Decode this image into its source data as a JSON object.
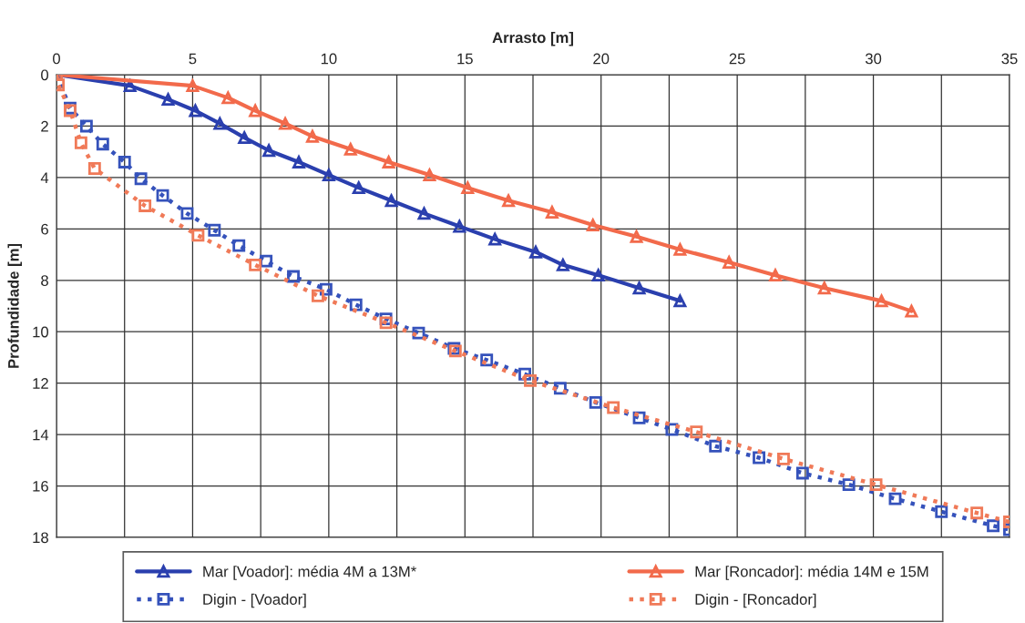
{
  "chart_data": {
    "type": "line",
    "xlabel": "Arrasto [m]",
    "ylabel": "Profundidade [m]",
    "xlim": [
      0,
      35
    ],
    "xticks": [
      0,
      5,
      10,
      15,
      20,
      25,
      30,
      35
    ],
    "ylim": [
      18,
      0
    ],
    "yticks": [
      0,
      2,
      4,
      6,
      8,
      10,
      12,
      14,
      16,
      18
    ],
    "grid": true,
    "legend": "bottom",
    "series": [
      {
        "name": "Mar [Voador]: média 4M a 13M*",
        "color": "#2a3fae",
        "marker": "triangle",
        "line_style": "solid",
        "x": [
          0,
          2.7,
          4.1,
          5.1,
          6.0,
          6.9,
          7.8,
          8.9,
          10.0,
          11.1,
          12.3,
          13.5,
          14.8,
          16.1,
          17.6,
          18.6,
          19.9,
          21.4,
          22.9
        ],
        "values": [
          0,
          0.43,
          0.96,
          1.4,
          1.9,
          2.45,
          2.95,
          3.4,
          3.9,
          4.4,
          4.9,
          5.4,
          5.9,
          6.4,
          6.9,
          7.4,
          7.8,
          8.3,
          8.8
        ]
      },
      {
        "name": "Mar [Roncador]: média 14M e 15M",
        "color": "#f26a4b",
        "marker": "triangle",
        "line_style": "solid",
        "x": [
          0,
          5.0,
          6.3,
          7.3,
          8.4,
          9.4,
          10.8,
          12.2,
          13.7,
          15.1,
          16.6,
          18.2,
          19.7,
          21.3,
          22.9,
          24.7,
          26.4,
          28.2,
          30.3,
          31.4
        ],
        "values": [
          0,
          0.43,
          0.9,
          1.4,
          1.9,
          2.4,
          2.9,
          3.4,
          3.9,
          4.4,
          4.9,
          5.35,
          5.85,
          6.3,
          6.8,
          7.3,
          7.8,
          8.3,
          8.8,
          9.2
        ]
      },
      {
        "name": "Digin - [Voador]",
        "color": "#3552bb",
        "marker": "square",
        "line_style": "dotted",
        "x": [
          0,
          0.5,
          1.1,
          1.7,
          2.5,
          3.1,
          3.9,
          4.8,
          5.8,
          6.7,
          7.7,
          8.7,
          9.9,
          11.0,
          12.1,
          13.3,
          14.6,
          15.8,
          17.2,
          18.5,
          19.8,
          21.4,
          22.6,
          24.2,
          25.8,
          27.4,
          29.1,
          30.8,
          32.5,
          34.4,
          35
        ],
        "values": [
          0,
          1.3,
          2.0,
          2.7,
          3.4,
          4.05,
          4.7,
          5.4,
          6.05,
          6.65,
          7.25,
          7.85,
          8.35,
          8.95,
          9.5,
          10.05,
          10.65,
          11.1,
          11.65,
          12.2,
          12.75,
          13.35,
          13.8,
          14.45,
          14.9,
          15.5,
          15.95,
          16.5,
          17.0,
          17.55,
          17.7
        ]
      },
      {
        "name": "Digin - [Roncador]",
        "color": "#f07a58",
        "marker": "square",
        "line_style": "dotted",
        "x": [
          0,
          0.07,
          0.5,
          0.9,
          1.4,
          3.25,
          5.2,
          7.3,
          9.6,
          12.1,
          14.65,
          17.4,
          20.45,
          23.5,
          26.7,
          30.1,
          33.8,
          35
        ],
        "values": [
          0,
          0.4,
          1.4,
          2.65,
          3.65,
          5.1,
          6.25,
          7.4,
          8.6,
          9.65,
          10.75,
          11.9,
          12.95,
          13.9,
          14.95,
          15.95,
          17.05,
          17.4
        ]
      }
    ]
  }
}
